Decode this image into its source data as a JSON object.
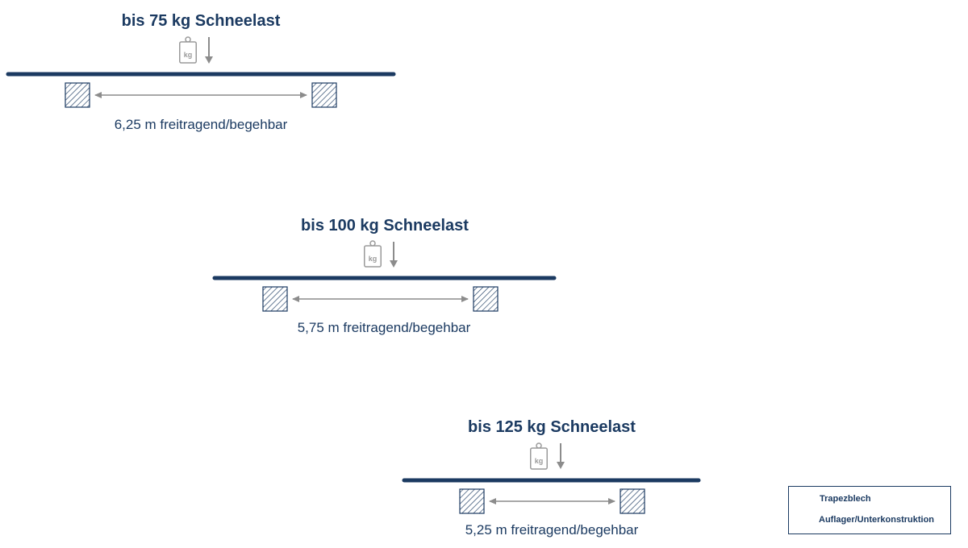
{
  "weight_icon_text": "kg",
  "load_cases": [
    {
      "title": "bis 75 kg Schneelast",
      "span_label": "6,25 m freitragend/begehbar"
    },
    {
      "title": "bis 100 kg Schneelast",
      "span_label": "5,75 m freitragend/begehbar"
    },
    {
      "title": "bis 125 kg Schneelast",
      "span_label": "5,25 m freitragend/begehbar"
    }
  ],
  "legend": {
    "sheet_label": "Trapezblech",
    "support_label": "Auflager/Unterkonstruktion"
  },
  "colors": {
    "navy": "#1b3a61",
    "gray": "#8c8c8c"
  }
}
